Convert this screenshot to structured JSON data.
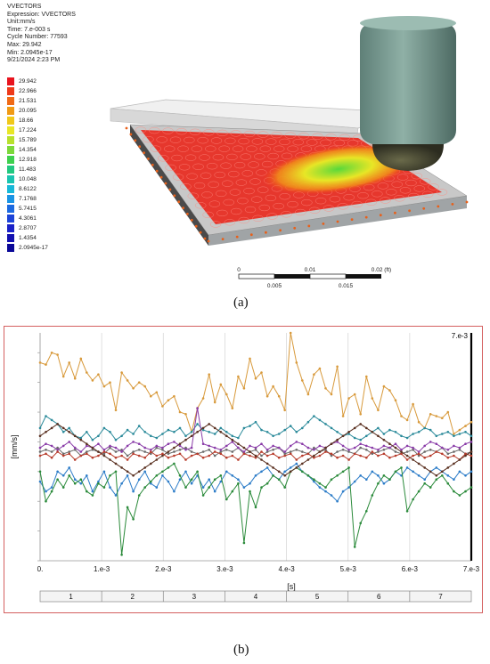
{
  "info": {
    "title": "VVECTORS",
    "expression": "Expression: VVECTORS",
    "unit": "Unit:mm/s",
    "time": "Time: 7.e-003 s",
    "cycle": "Cycle Number: 77593",
    "max": "Max: 29.942",
    "min": "Min: 2.0945e-17",
    "date": "9/21/2024 2:23 PM"
  },
  "legend": [
    {
      "label": "29.942",
      "color": "#e8141e"
    },
    {
      "label": "22.966",
      "color": "#ee3a1a"
    },
    {
      "label": "21.531",
      "color": "#f06a16"
    },
    {
      "label": "20.095",
      "color": "#f09a14"
    },
    {
      "label": "18.66",
      "color": "#f0c81a"
    },
    {
      "label": "17.224",
      "color": "#e8e626"
    },
    {
      "label": "15.789",
      "color": "#b8e02c"
    },
    {
      "label": "14.354",
      "color": "#7cd83a"
    },
    {
      "label": "12.918",
      "color": "#3ed04e"
    },
    {
      "label": "11.483",
      "color": "#22c880"
    },
    {
      "label": "10.048",
      "color": "#1ac4b0"
    },
    {
      "label": "8.6122",
      "color": "#18b8d8"
    },
    {
      "label": "7.1768",
      "color": "#1a94e4"
    },
    {
      "label": "5.7415",
      "color": "#1c6ae0"
    },
    {
      "label": "4.3061",
      "color": "#1c44d8"
    },
    {
      "label": "2.8707",
      "color": "#1a22c8"
    },
    {
      "label": "1.4354",
      "color": "#1210b0"
    },
    {
      "label": "2.0945e-17",
      "color": "#0a0898"
    }
  ],
  "scalebar": {
    "top_labels": [
      "0",
      "0.01",
      "0.02 (ft)"
    ],
    "bottom_labels": [
      "0.005",
      "0.015"
    ]
  },
  "captions": {
    "a": "(a)",
    "b": "(b)"
  },
  "chart_data": {
    "type": "line",
    "ylabel": "[mm/s]",
    "xlabel": "[s]",
    "x_tick_labels": [
      "0.",
      "1.e-3",
      "2.e-3",
      "3.e-3",
      "4.e-3",
      "5.e-3",
      "6.e-3",
      "7.e-3"
    ],
    "top_right_label": "7.e-3",
    "bottom_bar_labels": [
      "1",
      "2",
      "3",
      "4",
      "5",
      "6",
      "7"
    ],
    "xlim": [
      0,
      0.007
    ],
    "ylim": [
      -55,
      60
    ],
    "grid": true,
    "series": [
      {
        "color": "#d89a3c",
        "values": [
          45,
          44,
          50,
          49,
          38,
          45,
          37,
          47,
          40,
          36,
          39,
          33,
          35,
          21,
          40,
          36,
          32,
          35,
          33,
          28,
          30,
          23,
          26,
          28,
          20,
          19,
          10,
          22,
          27,
          39,
          25,
          34,
          29,
          22,
          38,
          32,
          47,
          37,
          40,
          28,
          33,
          28,
          21,
          60,
          45,
          36,
          29,
          39,
          42,
          32,
          29,
          43,
          18,
          27,
          29,
          19,
          38,
          27,
          21,
          33,
          31,
          26,
          18,
          16,
          24,
          15,
          12,
          19,
          18,
          17,
          20,
          9,
          11,
          13,
          15
        ]
      },
      {
        "color": "#6a6a6a",
        "values": [
          0,
          1,
          0,
          2,
          -1,
          0,
          1,
          -2,
          0,
          1,
          0,
          -1,
          2,
          0,
          1,
          -2,
          0,
          1,
          0,
          -1,
          2,
          1,
          -1,
          0,
          1,
          2,
          0,
          -1,
          0,
          1,
          -2,
          0,
          1,
          0,
          2,
          -1,
          0,
          1,
          -2,
          0,
          1,
          2,
          -1,
          0,
          1,
          0,
          -1,
          2,
          0,
          1,
          -2,
          0,
          1,
          0,
          -1,
          2,
          1,
          -1,
          0,
          1,
          2,
          0,
          -1,
          0,
          1,
          -2,
          0,
          1,
          0,
          2,
          -1,
          0,
          1,
          -1,
          0
        ]
      },
      {
        "color": "#2a8a9a",
        "values": [
          12,
          18,
          16,
          14,
          10,
          12,
          8,
          7,
          10,
          6,
          8,
          12,
          10,
          6,
          8,
          11,
          9,
          13,
          10,
          8,
          7,
          9,
          11,
          10,
          12,
          8,
          10,
          14,
          11,
          10,
          9,
          12,
          10,
          8,
          7,
          12,
          13,
          15,
          11,
          10,
          8,
          9,
          11,
          13,
          10,
          12,
          15,
          18,
          16,
          14,
          12,
          10,
          8,
          9,
          7,
          6,
          8,
          10,
          12,
          9,
          11,
          10,
          8,
          7,
          9,
          10,
          12,
          11,
          8,
          9,
          10,
          8,
          9,
          10,
          8
        ]
      },
      {
        "color": "#2c7cc8",
        "values": [
          -15,
          -20,
          -18,
          -10,
          -12,
          -8,
          -14,
          -16,
          -12,
          -20,
          -15,
          -10,
          -18,
          -22,
          -16,
          -12,
          -20,
          -14,
          -10,
          -16,
          -18,
          -12,
          -15,
          -20,
          -14,
          -10,
          -16,
          -12,
          -18,
          -14,
          -20,
          -15,
          -10,
          -12,
          -14,
          -18,
          -16,
          -12,
          -10,
          -8,
          -12,
          -14,
          -10,
          -8,
          -6,
          -10,
          -12,
          -15,
          -18,
          -20,
          -22,
          -25,
          -20,
          -18,
          -15,
          -12,
          -14,
          -10,
          -12,
          -16,
          -14,
          -10,
          -12,
          -8,
          -10,
          -12,
          -14,
          -10,
          -8,
          -10,
          -12,
          -14,
          -10,
          -12,
          -10
        ]
      },
      {
        "color": "#2a8a3a",
        "values": [
          -10,
          -25,
          -20,
          -14,
          -18,
          -12,
          -16,
          -14,
          -20,
          -22,
          -16,
          -18,
          -12,
          -10,
          -52,
          -28,
          -34,
          -22,
          -18,
          -15,
          -12,
          -10,
          -8,
          -6,
          -12,
          -18,
          -14,
          -10,
          -22,
          -18,
          -14,
          -12,
          -24,
          -20,
          -16,
          -46,
          -20,
          -28,
          -18,
          -16,
          -12,
          -14,
          -18,
          -10,
          -8,
          -10,
          -12,
          -14,
          -16,
          -18,
          -14,
          -12,
          -10,
          -8,
          -48,
          -36,
          -30,
          -22,
          -16,
          -12,
          -14,
          -10,
          -8,
          -30,
          -24,
          -20,
          -16,
          -18,
          -14,
          -12,
          -16,
          -20,
          -22,
          -20,
          -18
        ]
      },
      {
        "color": "#8a3ca8",
        "values": [
          2,
          4,
          3,
          1,
          3,
          5,
          2,
          0,
          3,
          2,
          4,
          1,
          3,
          2,
          0,
          3,
          5,
          4,
          2,
          1,
          3,
          2,
          4,
          5,
          3,
          1,
          2,
          22,
          4,
          3,
          2,
          1,
          3,
          5,
          2,
          0,
          3,
          2,
          4,
          1,
          3,
          2,
          0,
          3,
          5,
          4,
          2,
          1,
          3,
          2,
          4,
          5,
          3,
          1,
          2,
          4,
          3,
          2,
          1,
          3,
          2,
          4,
          1,
          3,
          2,
          0,
          3,
          5,
          4,
          2,
          1,
          3,
          2,
          4,
          5
        ]
      },
      {
        "color": "#b73c2c",
        "values": [
          -2,
          -1,
          -3,
          0,
          -2,
          -1,
          -4,
          -2,
          -1,
          -3,
          -2,
          0,
          -1,
          -3,
          -2,
          -4,
          -1,
          -2,
          -3,
          0,
          -2,
          -1,
          -3,
          -2,
          -1,
          -4,
          -2,
          -1,
          -3,
          -2,
          0,
          -1,
          -3,
          -2,
          -4,
          -1,
          -2,
          -3,
          0,
          -2,
          -1,
          -3,
          -2,
          -1,
          -4,
          -2,
          -1,
          -3,
          -2,
          0,
          -1,
          -3,
          -2,
          -4,
          -1,
          -2,
          -3,
          0,
          -2,
          -1,
          -3,
          -2,
          -1,
          -4,
          -2,
          -1,
          -3,
          -2,
          0,
          -1,
          -3,
          -2,
          -4,
          -1,
          -2
        ]
      },
      {
        "color": "#5a3020",
        "values": [
          8,
          10,
          12,
          14,
          12,
          10,
          8,
          6,
          4,
          2,
          0,
          -2,
          -4,
          -6,
          -8,
          -10,
          -12,
          -10,
          -8,
          -6,
          -4,
          -2,
          0,
          2,
          4,
          6,
          8,
          10,
          12,
          14,
          12,
          10,
          8,
          6,
          4,
          2,
          0,
          -2,
          -4,
          -6,
          -8,
          -10,
          -12,
          -10,
          -8,
          -6,
          -4,
          -2,
          0,
          2,
          4,
          6,
          8,
          10,
          12,
          14,
          12,
          10,
          8,
          6,
          4,
          2,
          0,
          -2,
          -4,
          -6,
          -8,
          -10,
          -12,
          -10,
          -8,
          -6,
          -4,
          -2,
          0
        ]
      }
    ]
  }
}
